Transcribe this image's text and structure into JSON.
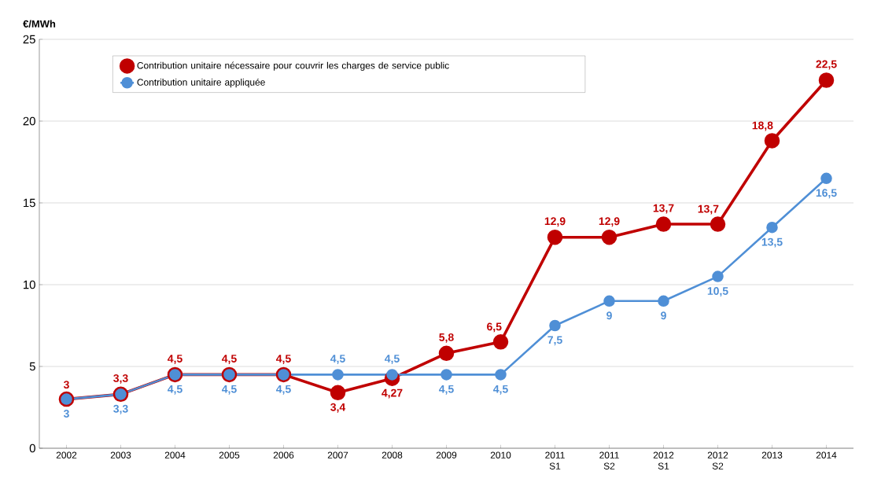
{
  "chart_data": {
    "type": "line",
    "ylabel": "€/MWh",
    "categories": [
      "2002",
      "2003",
      "2004",
      "2005",
      "2006",
      "2007",
      "2008",
      "2009",
      "2010",
      "2011 S1",
      "2011 S2",
      "2012 S1",
      "2012 S2",
      "2013",
      "2014"
    ],
    "series": [
      {
        "name": "Contribution unitaire nécessaire pour couvrir les charges de service public",
        "color": "#c00000",
        "values": [
          3,
          3.3,
          4.5,
          4.5,
          4.5,
          3.4,
          4.27,
          5.8,
          6.5,
          12.9,
          12.9,
          13.7,
          13.7,
          18.8,
          22.5
        ],
        "value_labels": [
          "3",
          "3,3",
          "4,5",
          "4,5",
          "4,5",
          "3,4",
          "4,27",
          "5,8",
          "6,5",
          "12,9",
          "12,9",
          "13,7",
          "13,7",
          "18,8",
          "22,5"
        ]
      },
      {
        "name": "Contribution unitaire appliquée",
        "color": "#4f8fd6",
        "values": [
          3,
          3.3,
          4.5,
          4.5,
          4.5,
          4.5,
          4.5,
          4.5,
          4.5,
          7.5,
          9,
          9,
          10.5,
          13.5,
          16.5
        ],
        "value_labels": [
          "3",
          "3,3",
          "4,5",
          "4,5",
          "4,5",
          "4,5",
          "4,5",
          "4,5",
          "4,5",
          "7,5",
          "9",
          "9",
          "10,5",
          "13,5",
          "16,5"
        ]
      }
    ],
    "ylim": [
      0,
      25
    ],
    "yticks": [
      0,
      5,
      10,
      15,
      20,
      25
    ],
    "grid": "y",
    "legend": "top left",
    "marker": "circle",
    "line_style": "solid"
  }
}
